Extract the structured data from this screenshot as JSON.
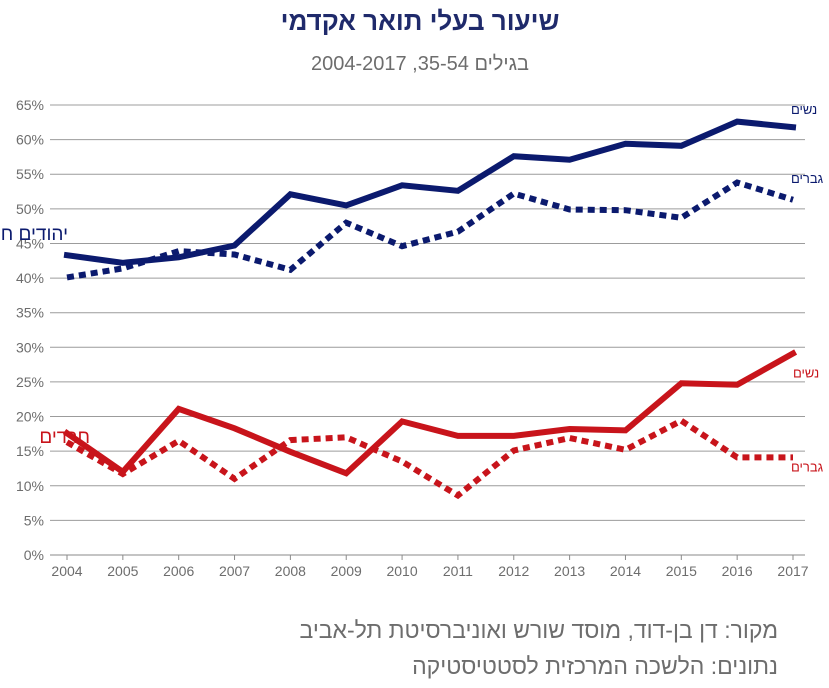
{
  "chart_data": {
    "type": "line",
    "title": "שיעור בעלי תואר אקדמי",
    "subtitle": "בגילים 35-54, 2004-2017",
    "x": [
      2004,
      2005,
      2006,
      2007,
      2008,
      2009,
      2010,
      2011,
      2012,
      2013,
      2014,
      2015,
      2016,
      2017
    ],
    "ylim": [
      0,
      65
    ],
    "yticks": [
      0,
      5,
      10,
      15,
      20,
      25,
      30,
      35,
      40,
      45,
      50,
      55,
      60,
      65
    ],
    "ytick_suffix": "%",
    "grid": true,
    "groups": [
      {
        "label": "יהודים חילונים",
        "color": "#0b1a6e"
      },
      {
        "label": "חרדים",
        "color": "#c8141b"
      }
    ],
    "series": [
      {
        "name": "נשים",
        "group": 0,
        "color": "#0b1a6e",
        "style": "solid",
        "values": [
          43.3,
          42.2,
          43.0,
          44.7,
          52.1,
          50.5,
          53.4,
          52.6,
          57.6,
          57.1,
          59.4,
          59.1,
          62.6,
          61.8
        ]
      },
      {
        "name": "גברים",
        "group": 0,
        "color": "#0b1a6e",
        "style": "dotted",
        "values": [
          40.1,
          41.4,
          43.9,
          43.4,
          41.2,
          48.0,
          44.6,
          46.7,
          52.2,
          49.9,
          49.8,
          48.7,
          53.8,
          51.3
        ]
      },
      {
        "name": "נשים",
        "group": 1,
        "color": "#c8141b",
        "style": "solid",
        "values": [
          17.6,
          12.0,
          21.1,
          18.3,
          14.9,
          11.8,
          19.3,
          17.2,
          17.2,
          18.2,
          18.0,
          24.8,
          24.6,
          29.1
        ]
      },
      {
        "name": "גברים",
        "group": 1,
        "color": "#c8141b",
        "style": "dotted",
        "values": [
          16.3,
          11.7,
          16.5,
          11.0,
          16.6,
          17.0,
          13.5,
          8.6,
          15.1,
          16.9,
          15.2,
          19.4,
          14.1,
          14.1
        ]
      }
    ]
  },
  "source": {
    "line1": "מקור: דן בן-דוד, מוסד שורש ואוניברסיטת תל-אביב",
    "line2": "נתונים: הלשכה המרכזית לסטטיסטיקה"
  }
}
